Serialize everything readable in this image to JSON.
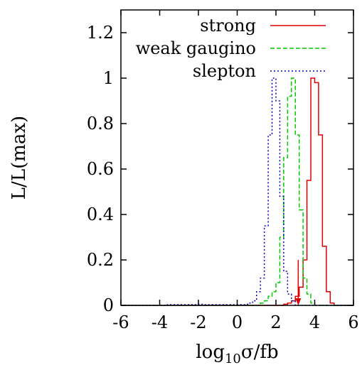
{
  "chart_data": {
    "type": "line",
    "step": true,
    "xlabel": "log10σ/fb",
    "xlabel_parts": {
      "base": "log",
      "sub": "10",
      "rest": "σ/fb"
    },
    "ylabel": "L/L(max)",
    "xlim": [
      -6,
      6
    ],
    "ylim": [
      0,
      1.3
    ],
    "xticks": [
      -6,
      -4,
      -2,
      0,
      2,
      4,
      6
    ],
    "xtick_labels": [
      "-6",
      "-4",
      "-2",
      "0",
      "2",
      "4",
      "6"
    ],
    "yticks": [
      0,
      0.2,
      0.4,
      0.6,
      0.8,
      1,
      1.2
    ],
    "ytick_labels": [
      "0",
      "0.2",
      "0.4",
      "0.6",
      "0.8",
      "1",
      "1.2"
    ],
    "grid": false,
    "legend_position": "top-right",
    "series": [
      {
        "name": "strong",
        "color": "#e00000",
        "dash": "solid",
        "x": [
          -6.0,
          -0.2,
          0.0,
          0.2,
          0.4,
          0.6,
          0.8,
          1.0,
          1.2,
          1.4,
          1.6,
          1.8,
          2.0,
          2.2,
          2.4,
          2.6,
          2.8,
          3.0,
          3.2,
          3.4,
          3.6,
          3.8,
          4.0,
          4.2,
          4.4,
          4.6,
          4.8,
          5.0,
          5.2,
          5.4,
          5.6,
          5.8,
          6.0
        ],
        "values": [
          0,
          0,
          0,
          0,
          0,
          0,
          0,
          0,
          0,
          0,
          0,
          0,
          0,
          0,
          0.005,
          0.01,
          0.02,
          0.04,
          0.08,
          0.2,
          0.55,
          1.0,
          0.98,
          0.75,
          0.26,
          0.06,
          0.01,
          0,
          0,
          0,
          0,
          0,
          0
        ]
      },
      {
        "name": "weak gaugino",
        "color": "#00cc00",
        "dash": "6,3",
        "x": [
          -6.0,
          -0.2,
          0.0,
          0.2,
          0.4,
          0.6,
          0.8,
          1.0,
          1.2,
          1.4,
          1.6,
          1.8,
          2.0,
          2.2,
          2.4,
          2.6,
          2.8,
          3.0,
          3.2,
          3.4,
          3.6,
          3.8,
          4.0,
          4.2,
          4.4,
          4.6,
          4.8,
          5.0,
          5.2,
          5.4,
          5.6,
          5.8,
          6.0
        ],
        "values": [
          0,
          0,
          0,
          0,
          0,
          0,
          0,
          0,
          0.01,
          0.02,
          0.04,
          0.06,
          0.1,
          0.3,
          0.65,
          0.92,
          1.0,
          0.75,
          0.42,
          0.12,
          0.05,
          0.01,
          0,
          0,
          0,
          0,
          0,
          0,
          0,
          0,
          0,
          0,
          0
        ]
      },
      {
        "name": "slepton",
        "color": "#0000cc",
        "dash": "2,3",
        "x": [
          -6.0,
          -3.8,
          -3.6,
          -3.4,
          -3.2,
          -3.0,
          -2.8,
          -2.6,
          -2.4,
          -2.2,
          -2.0,
          -1.8,
          -1.6,
          -1.4,
          -1.2,
          -1.0,
          -0.8,
          -0.6,
          -0.4,
          -0.2,
          0.0,
          0.2,
          0.4,
          0.6,
          0.8,
          1.0,
          1.2,
          1.4,
          1.6,
          1.8,
          2.0,
          2.2,
          2.4,
          2.6,
          2.8,
          3.0,
          3.2,
          3.4,
          3.6,
          3.8,
          4.0,
          6.0
        ],
        "values": [
          0,
          0,
          0.003,
          0.003,
          0.003,
          0.003,
          0.003,
          0.003,
          0.003,
          0.003,
          0.005,
          0.003,
          0.003,
          0.003,
          0.003,
          0.003,
          0.003,
          0.003,
          0.003,
          0.003,
          0.003,
          0.003,
          0.005,
          0.01,
          0.02,
          0.06,
          0.12,
          0.35,
          0.75,
          1.0,
          0.9,
          0.48,
          0.15,
          0.05,
          0.02,
          0,
          0,
          0,
          0,
          0,
          0,
          0
        ]
      }
    ],
    "annotations": [
      {
        "type": "arrow",
        "color": "#e00000",
        "x": 3.15,
        "y_from": 0.2,
        "y_to": 0
      }
    ]
  }
}
